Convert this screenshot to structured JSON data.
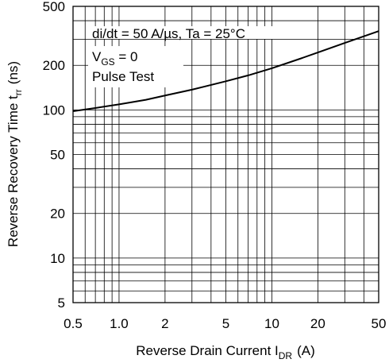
{
  "chart_data": {
    "type": "line",
    "xscale": "log",
    "yscale": "log",
    "xlim": [
      0.5,
      50
    ],
    "ylim": [
      5,
      500
    ],
    "grid": true,
    "xlabel": {
      "main": "Reverse Drain Current  I",
      "sub": "DR",
      "unit": "(A)"
    },
    "ylabel": {
      "main": "Reverse Recovery Time  t",
      "sub": "rr",
      "unit": "(ns)"
    },
    "x_ticks": [
      {
        "value": 0.5,
        "label": "0.5"
      },
      {
        "value": 1,
        "label": "1.0"
      },
      {
        "value": 2,
        "label": "2"
      },
      {
        "value": 5,
        "label": "5"
      },
      {
        "value": 10,
        "label": "10"
      },
      {
        "value": 20,
        "label": "20"
      },
      {
        "value": 50,
        "label": "50"
      }
    ],
    "y_ticks": [
      {
        "value": 5,
        "label": "5"
      },
      {
        "value": 10,
        "label": "10"
      },
      {
        "value": 20,
        "label": "20"
      },
      {
        "value": 50,
        "label": "50"
      },
      {
        "value": 100,
        "label": "100"
      },
      {
        "value": 200,
        "label": "200"
      },
      {
        "value": 500,
        "label": "500"
      }
    ],
    "annotations": [
      {
        "main": "di/dt = 50 A/µs, Ta = 25°C"
      },
      {
        "main": "V",
        "sub": "GS",
        "rest": " = 0"
      },
      {
        "main": "Pulse Test"
      }
    ],
    "series": [
      {
        "x": [
          0.5,
          0.7,
          1,
          1.5,
          2,
          3,
          5,
          7,
          10,
          15,
          20,
          30,
          50
        ],
        "y": [
          98,
          103,
          109,
          117,
          125,
          137,
          156,
          171,
          191,
          220,
          244,
          283,
          340
        ]
      }
    ]
  }
}
